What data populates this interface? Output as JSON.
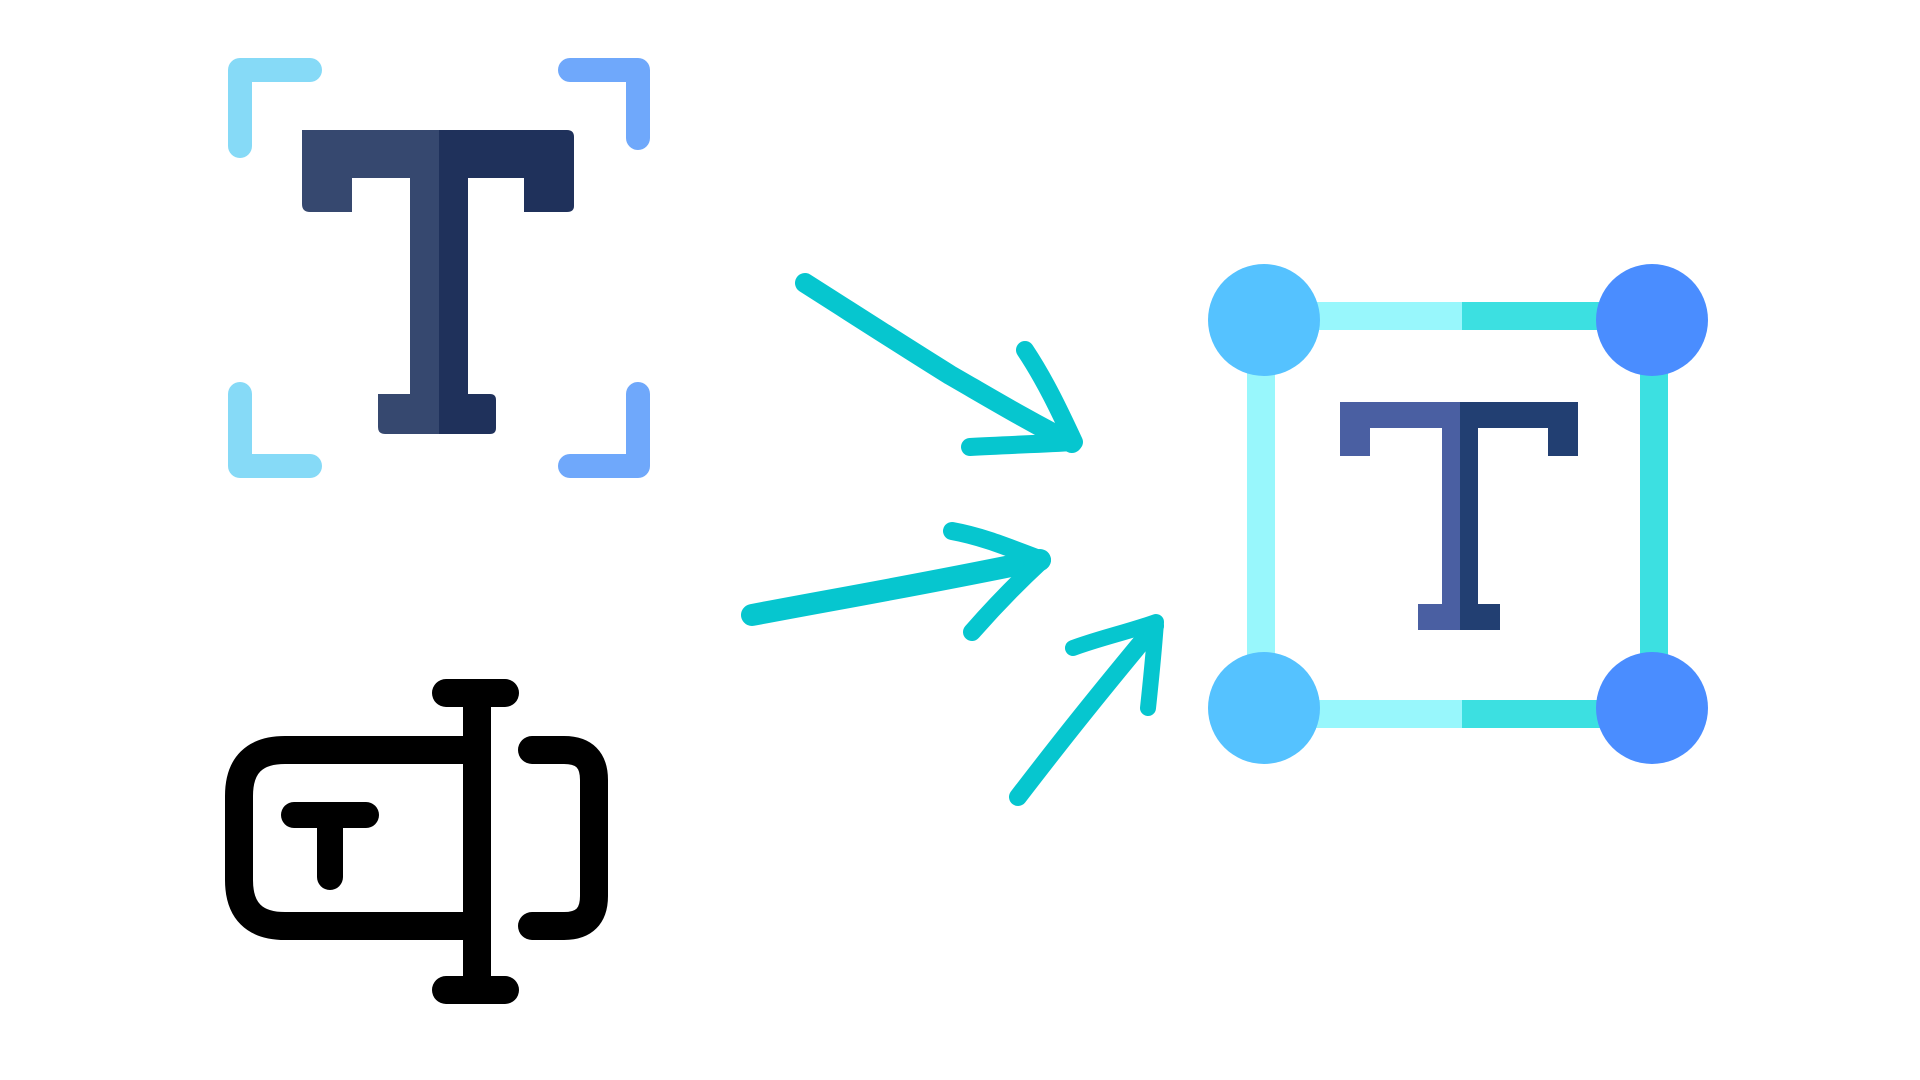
{
  "icons": {
    "source_top": "text-select-icon",
    "source_bottom": "text-box-cursor-icon",
    "target": "text-transform-icon"
  },
  "arrows": [
    "arrow-icon",
    "arrow-icon",
    "arrow-icon"
  ],
  "colors": {
    "navy_light": "#36486f",
    "navy_dark": "#1f315b",
    "corner_light_blue": "#86daf7",
    "corner_blue": "#6fa8fb",
    "frame_light_cyan": "#98f7fc",
    "frame_cyan": "#3ce0e1",
    "handle_light": "#55c2ff",
    "handle_blue": "#4a8dff",
    "t_left": "#4a5fa2",
    "t_right": "#223f72",
    "arrow_teal": "#06c6cf",
    "black": "#000000",
    "background": "#ffffff"
  }
}
